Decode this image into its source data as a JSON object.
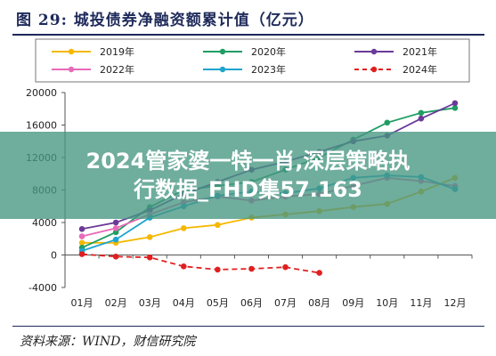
{
  "header": {
    "title": "图 29:  城投债券净融资额累计值（亿元）"
  },
  "footer": {
    "source": "资料来源：WIND，财信研究院"
  },
  "overlay": {
    "line1": "2024管家婆一特一肖,深层策略执",
    "line2": "行数据_FHD集57.163"
  },
  "chart_data": {
    "type": "line",
    "title": "",
    "xlabel": "",
    "ylabel": "",
    "categories": [
      "01月",
      "02月",
      "03月",
      "04月",
      "05月",
      "06月",
      "07月",
      "08月",
      "09月",
      "10月",
      "11月",
      "12月"
    ],
    "yticks": [
      "20000",
      "16000",
      "12000",
      "8000",
      "4000",
      "0",
      "-4000"
    ],
    "ylim": [
      -4000,
      20000
    ],
    "grid": false,
    "legend_position": "top",
    "series": [
      {
        "name": "2019年",
        "color": "#f5b800",
        "dash": false,
        "values": [
          1500,
          1500,
          2200,
          3300,
          3700,
          4600,
          5000,
          5400,
          5900,
          6300,
          7800,
          9500
        ]
      },
      {
        "name": "2020年",
        "color": "#1f9e63",
        "dash": false,
        "values": [
          900,
          2800,
          5900,
          8000,
          8500,
          9000,
          10500,
          12000,
          14200,
          16300,
          17500,
          18100
        ]
      },
      {
        "name": "2021年",
        "color": "#6b3a99",
        "dash": false,
        "values": [
          3200,
          4000,
          5500,
          7500,
          9000,
          10500,
          11500,
          12700,
          14000,
          14700,
          16800,
          18700
        ]
      },
      {
        "name": "2022年",
        "color": "#e86ab8",
        "dash": false,
        "values": [
          2300,
          3300,
          5000,
          6500,
          7200,
          6700,
          7200,
          7500,
          8500,
          9500,
          9100,
          8500
        ]
      },
      {
        "name": "2023年",
        "color": "#1da4cf",
        "dash": false,
        "values": [
          500,
          1900,
          4600,
          6000,
          7300,
          7800,
          7600,
          8200,
          9500,
          9800,
          9600,
          8100
        ]
      },
      {
        "name": "2024年",
        "color": "#e02020",
        "dash": true,
        "values": [
          100,
          -200,
          -300,
          -1400,
          -1800,
          -1700,
          -1500,
          -2200,
          null,
          null,
          null,
          null
        ]
      }
    ]
  }
}
